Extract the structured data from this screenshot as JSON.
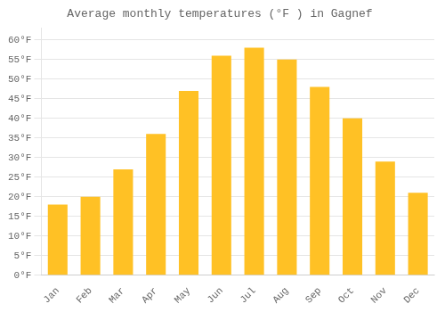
{
  "chart_data": {
    "type": "bar",
    "title": "Average monthly temperatures (°F ) in Gagnef",
    "categories": [
      "Jan",
      "Feb",
      "Mar",
      "Apr",
      "May",
      "Jun",
      "Jul",
      "Aug",
      "Sep",
      "Oct",
      "Nov",
      "Dec"
    ],
    "values": [
      18,
      20,
      27,
      36,
      47,
      56,
      58,
      55,
      48,
      40,
      29,
      21
    ],
    "color": "#FFC125",
    "ylim": [
      0,
      63
    ],
    "yticks": [
      {
        "value": 0,
        "label": "0°F"
      },
      {
        "value": 5,
        "label": "5°F"
      },
      {
        "value": 10,
        "label": "10°F"
      },
      {
        "value": 15,
        "label": "15°F"
      },
      {
        "value": 20,
        "label": "20°F"
      },
      {
        "value": 25,
        "label": "25°F"
      },
      {
        "value": 30,
        "label": "30°F"
      },
      {
        "value": 35,
        "label": "35°F"
      },
      {
        "value": 40,
        "label": "40°F"
      },
      {
        "value": 45,
        "label": "45°F"
      },
      {
        "value": 50,
        "label": "50°F"
      },
      {
        "value": 55,
        "label": "55°F"
      },
      {
        "value": 60,
        "label": "60°F"
      }
    ],
    "grid": true
  }
}
